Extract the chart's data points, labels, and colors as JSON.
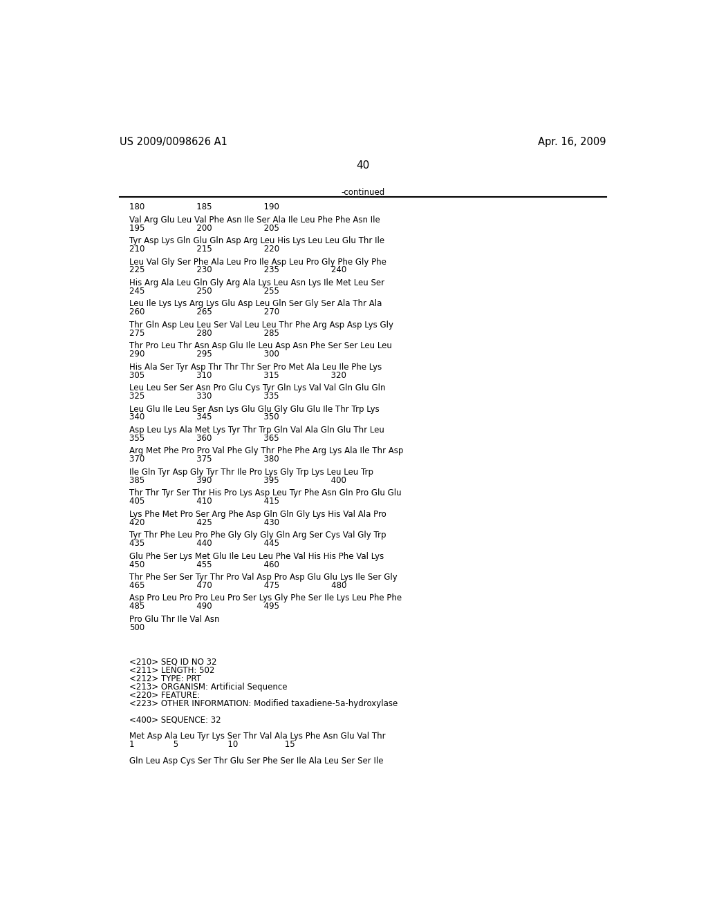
{
  "header_left": "US 2009/0098626 A1",
  "header_right": "Apr. 16, 2009",
  "page_number": "40",
  "continued_label": "-continued",
  "background_color": "#ffffff",
  "text_color": "#000000",
  "content_lines": [
    "180                    185                    190",
    "~",
    "Val Arg Glu Leu Val Phe Asn Ile Ser Ala Ile Leu Phe Phe Asn Ile",
    "195                    200                    205",
    "~",
    "Tyr Asp Lys Gln Glu Gln Asp Arg Leu His Lys Leu Leu Glu Thr Ile",
    "210                    215                    220",
    "~",
    "Leu Val Gly Ser Phe Ala Leu Pro Ile Asp Leu Pro Gly Phe Gly Phe",
    "225                    230                    235                    240",
    "~",
    "His Arg Ala Leu Gln Gly Arg Ala Lys Leu Asn Lys Ile Met Leu Ser",
    "245                    250                    255",
    "~",
    "Leu Ile Lys Lys Arg Lys Glu Asp Leu Gln Ser Gly Ser Ala Thr Ala",
    "260                    265                    270",
    "~",
    "Thr Gln Asp Leu Leu Ser Val Leu Leu Thr Phe Arg Asp Asp Lys Gly",
    "275                    280                    285",
    "~",
    "Thr Pro Leu Thr Asn Asp Glu Ile Leu Asp Asn Phe Ser Ser Leu Leu",
    "290                    295                    300",
    "~",
    "His Ala Ser Tyr Asp Thr Thr Thr Ser Pro Met Ala Leu Ile Phe Lys",
    "305                    310                    315                    320",
    "~",
    "Leu Leu Ser Ser Asn Pro Glu Cys Tyr Gln Lys Val Val Gln Glu Gln",
    "325                    330                    335",
    "~",
    "Leu Glu Ile Leu Ser Asn Lys Glu Glu Gly Glu Glu Ile Thr Trp Lys",
    "340                    345                    350",
    "~",
    "Asp Leu Lys Ala Met Lys Tyr Thr Trp Gln Val Ala Gln Glu Thr Leu",
    "355                    360                    365",
    "~",
    "Arg Met Phe Pro Pro Val Phe Gly Thr Phe Phe Arg Lys Ala Ile Thr Asp",
    "370                    375                    380",
    "~",
    "Ile Gln Tyr Asp Gly Tyr Thr Ile Pro Lys Gly Trp Lys Leu Leu Trp",
    "385                    390                    395                    400",
    "~",
    "Thr Thr Tyr Ser Thr His Pro Lys Asp Leu Tyr Phe Asn Gln Pro Glu Glu",
    "405                    410                    415",
    "~",
    "Lys Phe Met Pro Ser Arg Phe Asp Gln Gln Gly Lys His Val Ala Pro",
    "420                    425                    430",
    "~",
    "Tyr Thr Phe Leu Pro Phe Gly Gly Gly Gln Arg Ser Cys Val Gly Trp",
    "435                    440                    445",
    "~",
    "Glu Phe Ser Lys Met Glu Ile Leu Leu Phe Val His His Phe Val Lys",
    "450                    455                    460",
    "~",
    "Thr Phe Ser Ser Tyr Thr Pro Val Asp Pro Asp Glu Glu Lys Ile Ser Gly",
    "465                    470                    475                    480",
    "~",
    "Asp Pro Leu Pro Pro Leu Pro Ser Lys Gly Phe Ser Ile Lys Leu Phe Phe",
    "485                    490                    495",
    "~",
    "Pro Glu Thr Ile Val Asn",
    "500"
  ],
  "meta_lines": [
    "",
    "",
    "<210> SEQ ID NO 32",
    "<211> LENGTH: 502",
    "<212> TYPE: PRT",
    "<213> ORGANISM: Artificial Sequence",
    "<220> FEATURE:",
    "<223> OTHER INFORMATION: Modified taxadiene-5a-hydroxylase",
    "",
    "<400> SEQUENCE: 32",
    "",
    "Met Asp Ala Leu Tyr Lys Ser Thr Val Ala Lys Phe Asn Glu Val Thr",
    "1               5                   10                  15",
    "",
    "Gln Leu Asp Cys Ser Thr Glu Ser Phe Ser Ile Ala Leu Ser Ser Ile"
  ]
}
